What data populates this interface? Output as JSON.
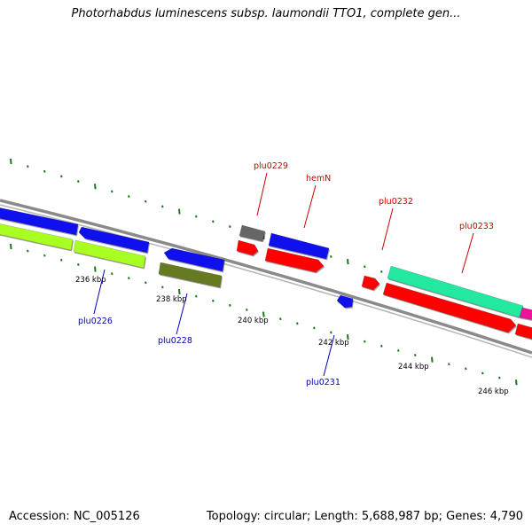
{
  "title": "Photorhabdus luminescens subsp. laumondii TTO1, complete gen...",
  "footer": {
    "accession": "Accession: NC_005126",
    "summary": "Topology: circular; Length: 5,688,987 bp; Genes: 4,790"
  },
  "colors": {
    "backbone": "#8a8a8a",
    "tick": "#1a7a1a",
    "label_red": "#cc0000",
    "label_blue": "#0000bb"
  },
  "scale_labels": [
    "236 kbp",
    "238 kbp",
    "240 kbp",
    "242 kbp",
    "244 kbp",
    "246 kbp"
  ],
  "features": [
    {
      "color": "#1010ee",
      "strand": "reverse"
    },
    {
      "color": "#1010ee",
      "strand": "reverse"
    },
    {
      "color": "#aaff22",
      "strand": "forward"
    },
    {
      "color": "#aaff22",
      "strand": "forward"
    },
    {
      "color": "#1010ee",
      "strand": "reverse"
    },
    {
      "color": "#667a22",
      "strand": "forward"
    },
    {
      "color": "#666666",
      "strand": "none"
    },
    {
      "color": "#ff0000",
      "strand": "forward"
    },
    {
      "color": "#1010ee",
      "strand": "forward"
    },
    {
      "color": "#ff0000",
      "strand": "forward"
    },
    {
      "color": "#1010ee",
      "strand": "reverse"
    },
    {
      "color": "#ff0000",
      "strand": "forward"
    },
    {
      "color": "#22e8a0",
      "strand": "forward"
    },
    {
      "color": "#ff0000",
      "strand": "forward"
    },
    {
      "color": "#ee1199",
      "strand": "none"
    },
    {
      "color": "#ff0000",
      "strand": "forward"
    }
  ],
  "gene_labels": [
    {
      "text": "plu0229",
      "color": "#cc0000"
    },
    {
      "text": "hemN",
      "color": "#cc0000"
    },
    {
      "text": "plu0232",
      "color": "#cc0000"
    },
    {
      "text": "plu0233",
      "color": "#cc0000"
    },
    {
      "text": "plu0226",
      "color": "#0000bb"
    },
    {
      "text": "plu0228",
      "color": "#0000bb"
    },
    {
      "text": "plu0231",
      "color": "#0000bb"
    }
  ]
}
